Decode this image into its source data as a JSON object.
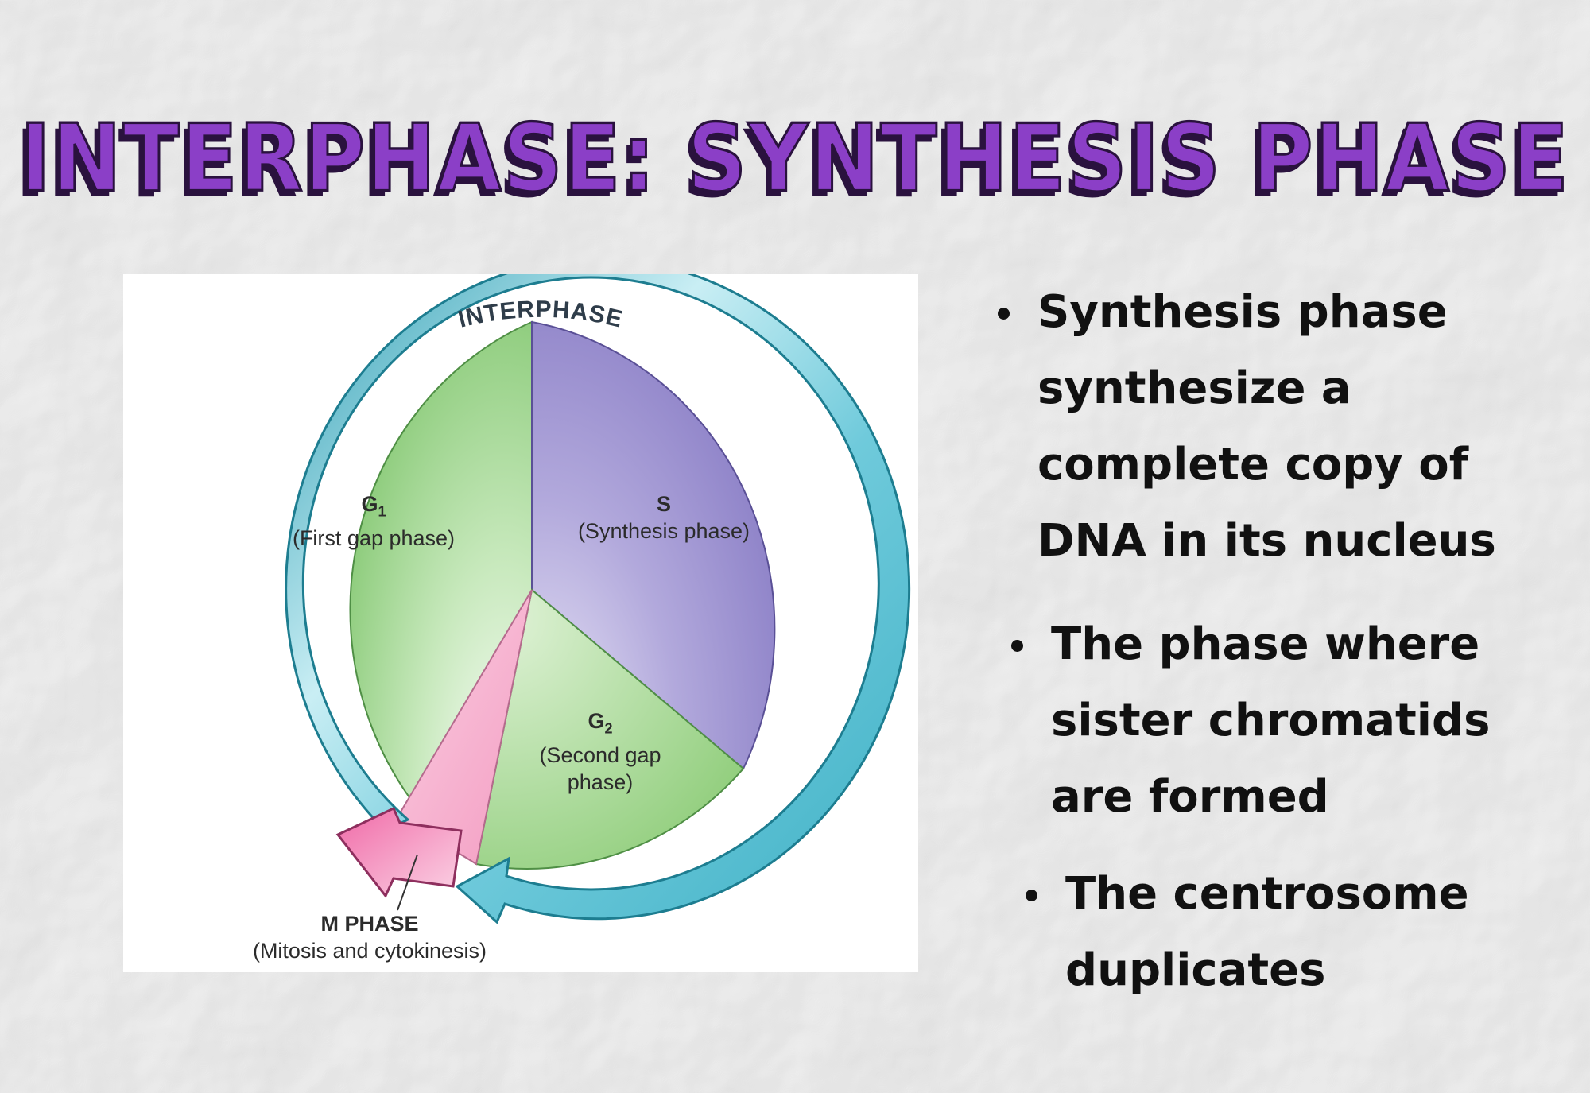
{
  "slide": {
    "title": "INTERPHASE: SYNTHESIS PHASE"
  },
  "diagram": {
    "ring_label": "INTERPHASE",
    "g1": {
      "code": "G",
      "sub": "1",
      "name": "(First gap phase)"
    },
    "s": {
      "code": "S",
      "name": "(Synthesis phase)"
    },
    "g2": {
      "code": "G",
      "sub": "2",
      "name_line1": "(Second gap",
      "name_line2": "phase)"
    },
    "m": {
      "code": "M PHASE",
      "name": "(Mitosis and cytokinesis)"
    },
    "colors": {
      "g1": "#8fcf7e",
      "s": "#9b8fcf",
      "g2": "#9fd48c",
      "m": "#f7b4cf",
      "ring": "#5ec2d4",
      "ring_dark": "#1d7d90",
      "arrow_pink": "#ec6fa6"
    }
  },
  "bullets": [
    {
      "lines": [
        "Synthesis phase",
        "synthesize a",
        "complete copy of",
        "DNA in its nucleus"
      ]
    },
    {
      "lines": [
        "The phase where",
        "sister chromatids",
        "are formed"
      ]
    },
    {
      "lines": [
        "The centrosome",
        "duplicates"
      ]
    }
  ]
}
